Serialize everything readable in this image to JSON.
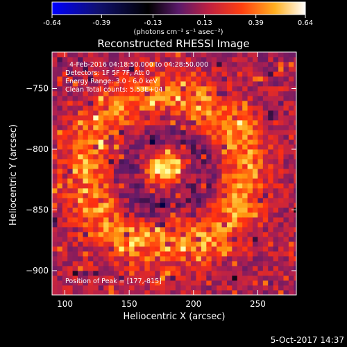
{
  "chart_data": {
    "type": "heatmap",
    "title": "Reconstructed RHESSI Image",
    "xlabel": "Heliocentric X (arcsec)",
    "ylabel": "Heliocentric Y (arcsec)",
    "xlim": [
      90,
      280
    ],
    "ylim": [
      -920,
      -720
    ],
    "xticks": [
      "100",
      "150",
      "200",
      "250"
    ],
    "yticks": [
      "-750",
      "-800",
      "-850",
      "-900"
    ],
    "colorbar": {
      "range": [
        -0.64,
        0.64
      ],
      "ticks": [
        "-0.64",
        "-0.39",
        "-0.13",
        "0.13",
        "0.39",
        "0.64"
      ],
      "unit_text": "(photons cm⁻² s⁻¹ asec⁻²)",
      "colormap": [
        "#0000ff",
        "#000000",
        "#5a1a6a",
        "#b02050",
        "#ff3010",
        "#ff9a10",
        "#ffff80",
        "#ffffff"
      ]
    },
    "annotations": {
      "time_range": "4-Feb-2016 04:18:50.000 to 04:28:50.000",
      "detectors": "Detectors: 1F 5F 7F, Att 0",
      "energy": "Energy Range: 3.0 - 6.0 keV",
      "clean": "Clean     Total counts: 5.53E+04",
      "peak": "Position of Peak = [177,-815]"
    },
    "peak": {
      "x": 177,
      "y": -815
    },
    "ring": {
      "center_x": 178,
      "center_y": -818,
      "radius": 62
    }
  },
  "footer": {
    "timestamp": "5-Oct-2017 14:37"
  }
}
